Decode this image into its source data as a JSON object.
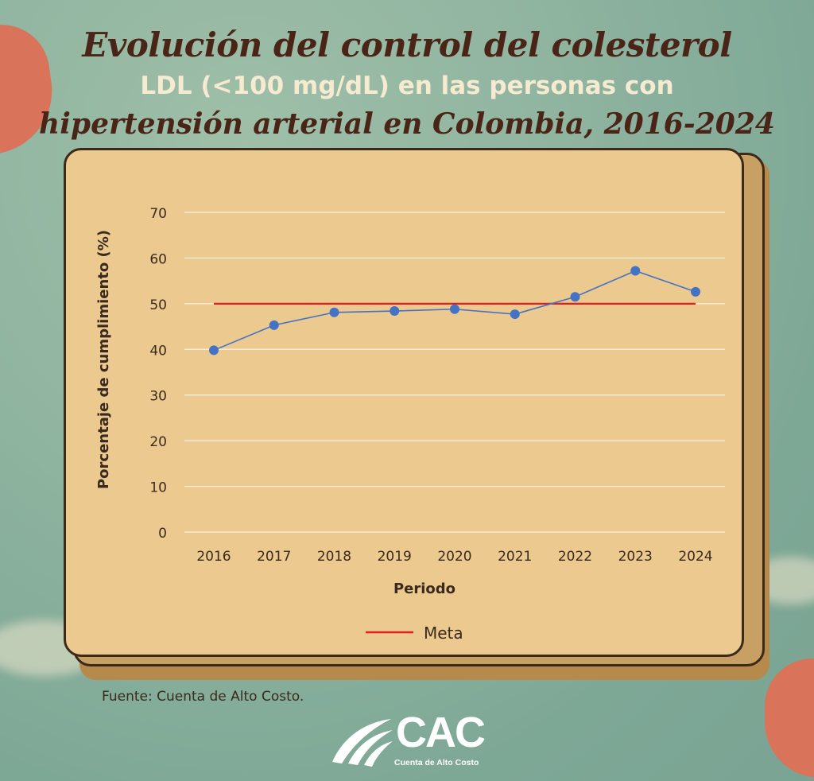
{
  "header": {
    "title_line1": "Evolución del control del colesterol",
    "title_line2": "LDL (<100 mg/dL) en las personas con",
    "title_line3": "hipertensión arterial en Colombia, 2016-2024"
  },
  "chart_data": {
    "type": "line",
    "xlabel": "Periodo",
    "ylabel": "Porcentaje de cumplimiento (%)",
    "ylim": [
      0,
      70
    ],
    "yticks": [
      0,
      10,
      20,
      30,
      40,
      50,
      60,
      70
    ],
    "categories": [
      "2016",
      "2017",
      "2018",
      "2019",
      "2020",
      "2021",
      "2022",
      "2023",
      "2024"
    ],
    "series": [
      {
        "values": [
          39.8,
          45.3,
          48.1,
          48.4,
          48.8,
          47.7,
          51.5,
          57.2,
          52.6
        ],
        "color": "#4472c4",
        "markers": true
      },
      {
        "name": "Meta",
        "values": [
          50,
          50,
          50,
          50,
          50,
          50,
          50,
          50,
          50
        ],
        "color": "#e02020",
        "markers": false
      }
    ],
    "grid": true,
    "legend": {
      "position": "bottom-center",
      "entries": [
        "Meta"
      ]
    }
  },
  "footer": {
    "source": "Fuente: Cuenta de Alto Costo.",
    "logo_text": "CAC",
    "logo_subtitle": "Cuenta de Alto Costo"
  },
  "colors": {
    "title_dark": "#4a2416",
    "title_light": "#f6ead0",
    "board": "#ecc98e",
    "background": "#8fb4a0"
  }
}
